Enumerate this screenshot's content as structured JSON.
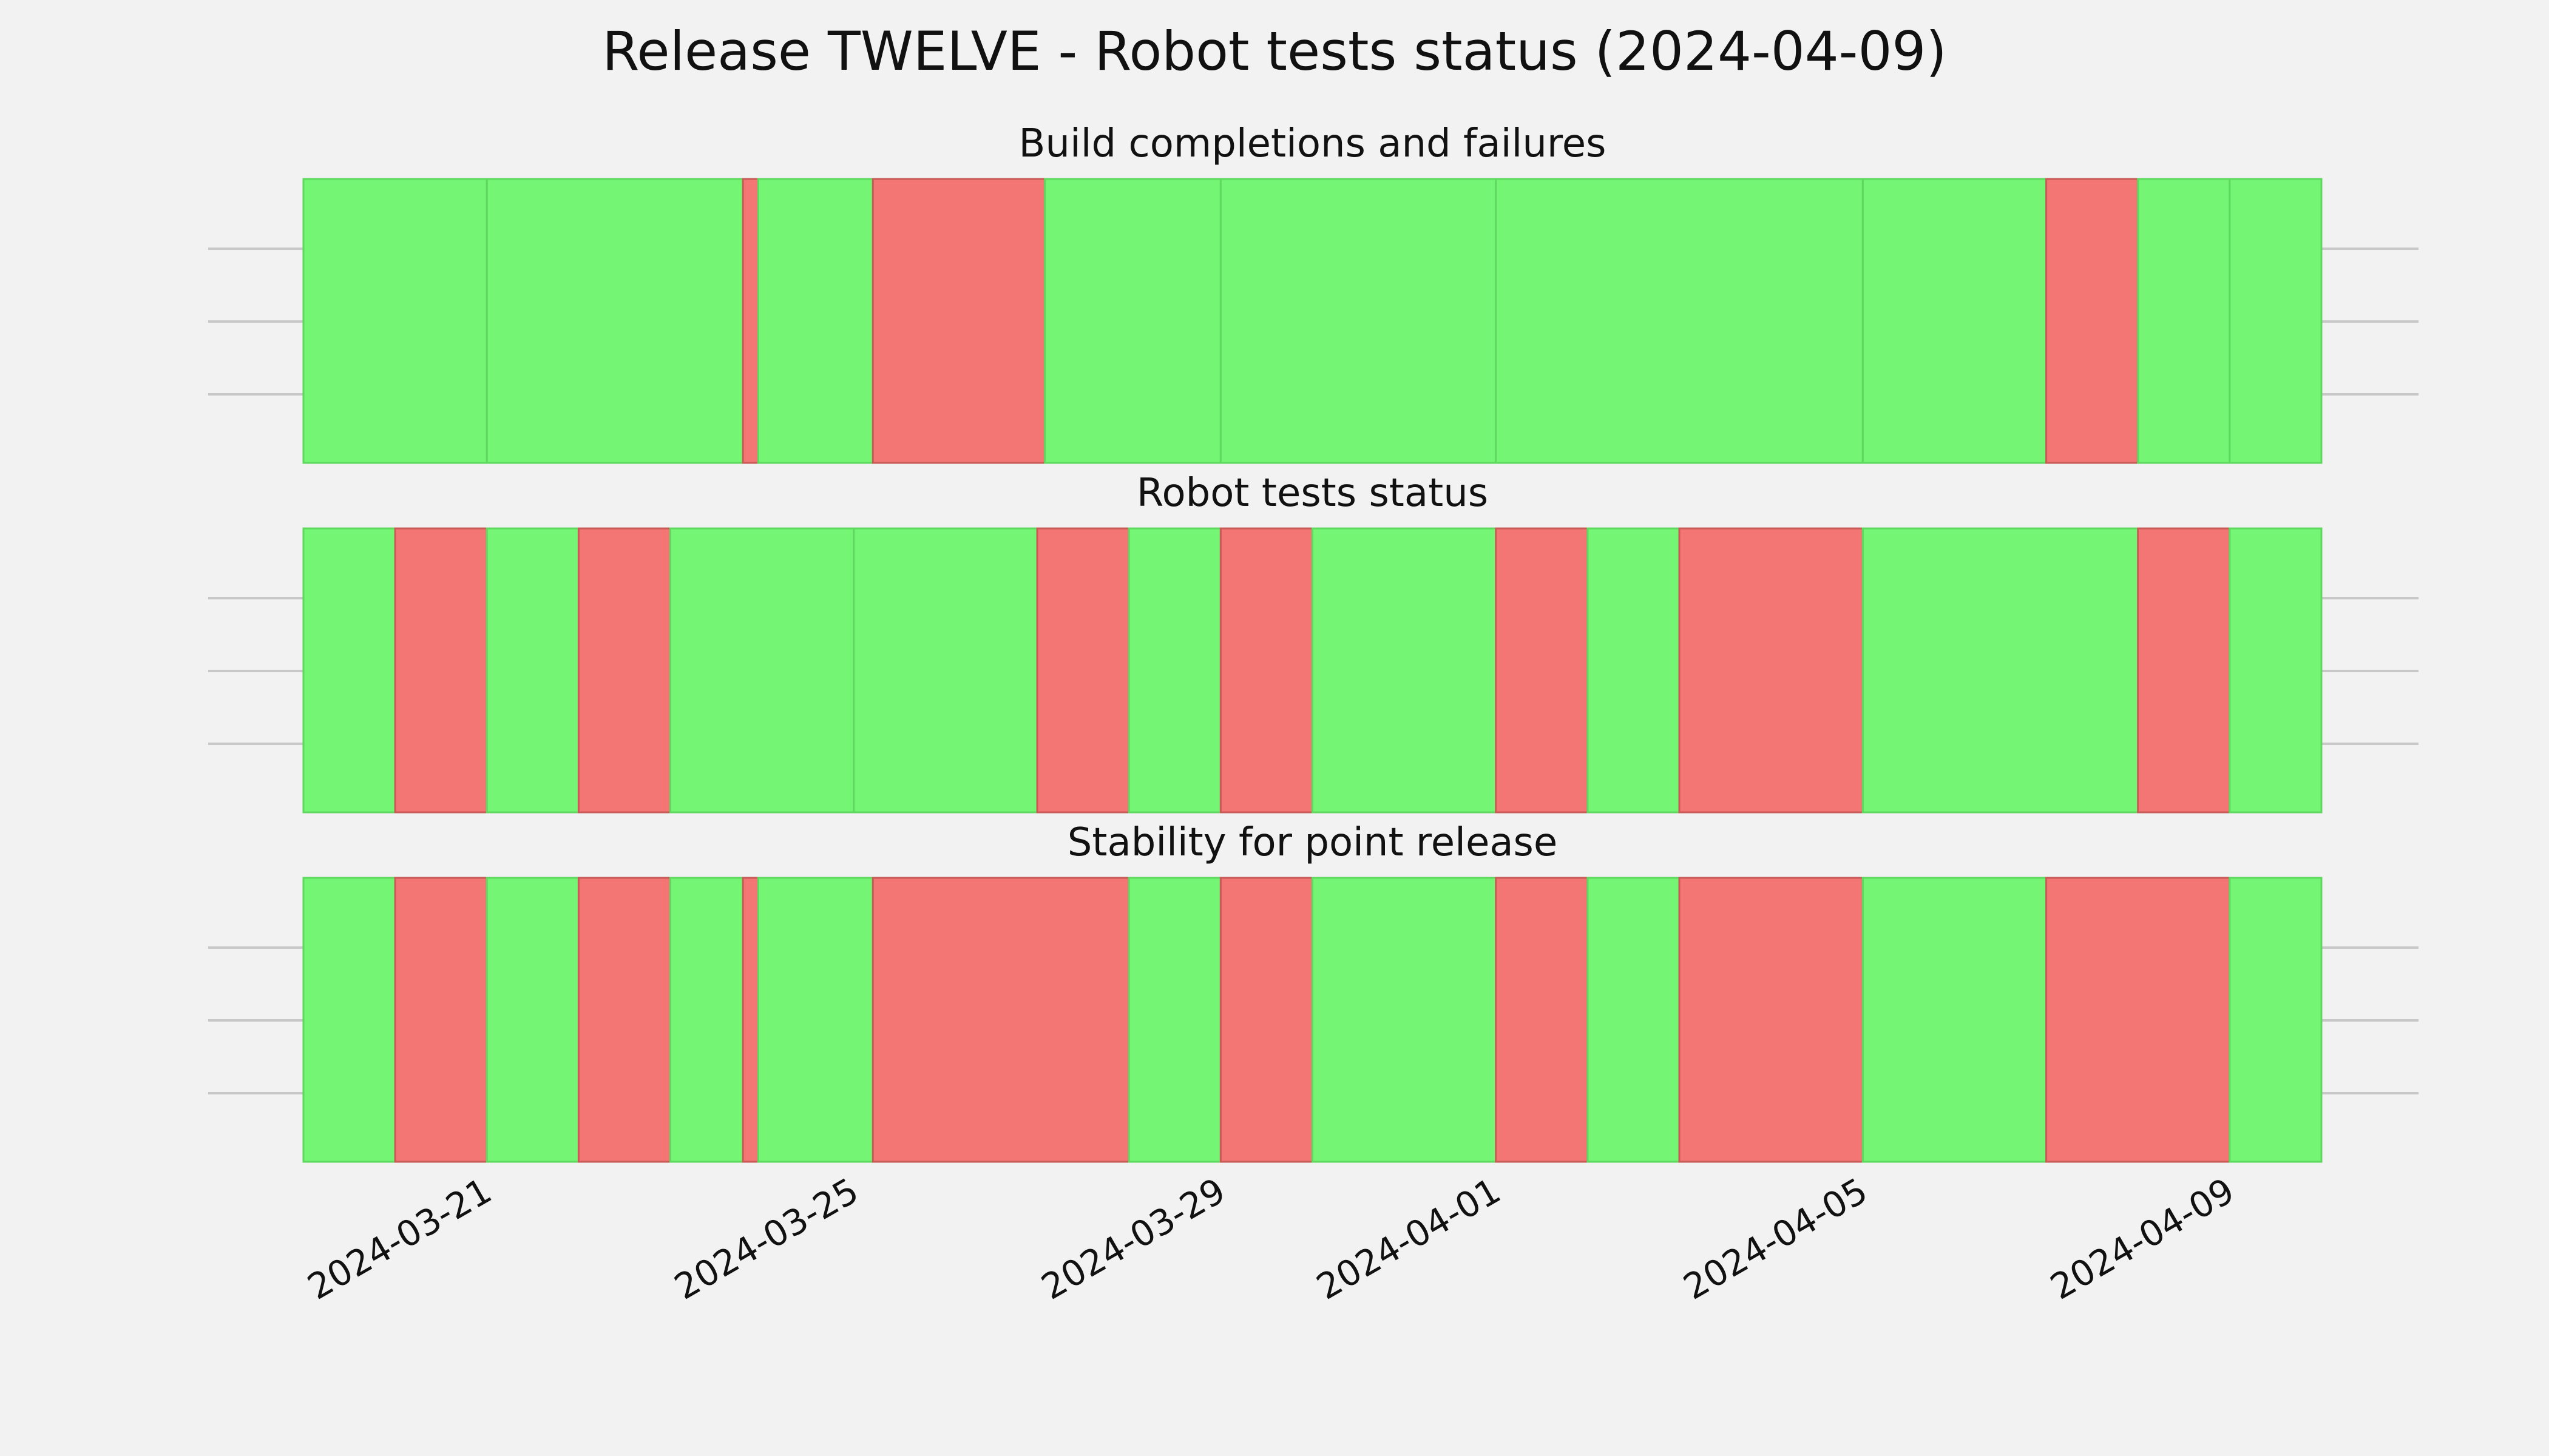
{
  "chart_data": {
    "type": "timeline-status",
    "title": "Release TWELVE - Robot tests status (2024-04-09)",
    "colors": {
      "pass": "#74f574",
      "fail": "#f47674",
      "background": "#f2f2f2",
      "grid": "#c8c8c8"
    },
    "x_range": [
      "2024-03-19T00:00",
      "2024-04-10T00:00"
    ],
    "x_ticks": [
      "2024-03-21",
      "2024-03-25",
      "2024-03-29",
      "2024-04-01",
      "2024-04-05",
      "2024-04-09"
    ],
    "panels": [
      {
        "title": "Build completions and failures",
        "segments": [
          {
            "start": "2024-03-19T00:00",
            "end": "2024-03-21T00:00",
            "status": "pass"
          },
          {
            "start": "2024-03-21T00:00",
            "end": "2024-03-23T19:00",
            "status": "pass"
          },
          {
            "start": "2024-03-23T19:00",
            "end": "2024-03-23T23:00",
            "status": "fail"
          },
          {
            "start": "2024-03-23T23:00",
            "end": "2024-03-25T05:00",
            "status": "pass"
          },
          {
            "start": "2024-03-25T05:00",
            "end": "2024-03-27T02:00",
            "status": "fail"
          },
          {
            "start": "2024-03-27T02:00",
            "end": "2024-03-29T00:00",
            "status": "pass"
          },
          {
            "start": "2024-03-29T00:00",
            "end": "2024-04-01T00:00",
            "status": "pass"
          },
          {
            "start": "2024-04-01T00:00",
            "end": "2024-04-05T00:00",
            "status": "pass"
          },
          {
            "start": "2024-04-05T00:00",
            "end": "2024-04-07T00:00",
            "status": "pass"
          },
          {
            "start": "2024-04-07T00:00",
            "end": "2024-04-08T00:00",
            "status": "fail"
          },
          {
            "start": "2024-04-08T00:00",
            "end": "2024-04-09T00:00",
            "status": "pass"
          },
          {
            "start": "2024-04-09T00:00",
            "end": "2024-04-10T00:00",
            "status": "pass"
          }
        ]
      },
      {
        "title": "Robot tests status",
        "segments": [
          {
            "start": "2024-03-19T00:00",
            "end": "2024-03-20T00:00",
            "status": "pass"
          },
          {
            "start": "2024-03-20T00:00",
            "end": "2024-03-21T00:00",
            "status": "fail"
          },
          {
            "start": "2024-03-21T00:00",
            "end": "2024-03-22T00:00",
            "status": "pass"
          },
          {
            "start": "2024-03-22T00:00",
            "end": "2024-03-23T00:00",
            "status": "fail"
          },
          {
            "start": "2024-03-23T00:00",
            "end": "2024-03-25T00:00",
            "status": "pass"
          },
          {
            "start": "2024-03-25T00:00",
            "end": "2024-03-27T00:00",
            "status": "pass"
          },
          {
            "start": "2024-03-27T00:00",
            "end": "2024-03-28T00:00",
            "status": "fail"
          },
          {
            "start": "2024-03-28T00:00",
            "end": "2024-03-29T00:00",
            "status": "pass"
          },
          {
            "start": "2024-03-29T00:00",
            "end": "2024-03-30T00:00",
            "status": "fail"
          },
          {
            "start": "2024-03-30T00:00",
            "end": "2024-04-01T00:00",
            "status": "pass"
          },
          {
            "start": "2024-04-01T00:00",
            "end": "2024-04-02T00:00",
            "status": "fail"
          },
          {
            "start": "2024-04-02T00:00",
            "end": "2024-04-03T00:00",
            "status": "pass"
          },
          {
            "start": "2024-04-03T00:00",
            "end": "2024-04-05T00:00",
            "status": "fail"
          },
          {
            "start": "2024-04-05T00:00",
            "end": "2024-04-08T00:00",
            "status": "pass"
          },
          {
            "start": "2024-04-08T00:00",
            "end": "2024-04-09T00:00",
            "status": "fail"
          },
          {
            "start": "2024-04-09T00:00",
            "end": "2024-04-10T00:00",
            "status": "pass"
          }
        ]
      },
      {
        "title": "Stability for point release",
        "segments": [
          {
            "start": "2024-03-19T00:00",
            "end": "2024-03-20T00:00",
            "status": "pass"
          },
          {
            "start": "2024-03-20T00:00",
            "end": "2024-03-21T00:00",
            "status": "fail"
          },
          {
            "start": "2024-03-21T00:00",
            "end": "2024-03-22T00:00",
            "status": "pass"
          },
          {
            "start": "2024-03-22T00:00",
            "end": "2024-03-23T00:00",
            "status": "fail"
          },
          {
            "start": "2024-03-23T00:00",
            "end": "2024-03-23T19:00",
            "status": "pass"
          },
          {
            "start": "2024-03-23T19:00",
            "end": "2024-03-23T23:00",
            "status": "fail"
          },
          {
            "start": "2024-03-23T23:00",
            "end": "2024-03-25T05:00",
            "status": "pass"
          },
          {
            "start": "2024-03-25T05:00",
            "end": "2024-03-28T00:00",
            "status": "fail"
          },
          {
            "start": "2024-03-28T00:00",
            "end": "2024-03-29T00:00",
            "status": "pass"
          },
          {
            "start": "2024-03-29T00:00",
            "end": "2024-03-30T00:00",
            "status": "fail"
          },
          {
            "start": "2024-03-30T00:00",
            "end": "2024-04-01T00:00",
            "status": "pass"
          },
          {
            "start": "2024-04-01T00:00",
            "end": "2024-04-02T00:00",
            "status": "fail"
          },
          {
            "start": "2024-04-02T00:00",
            "end": "2024-04-03T00:00",
            "status": "pass"
          },
          {
            "start": "2024-04-03T00:00",
            "end": "2024-04-05T00:00",
            "status": "fail"
          },
          {
            "start": "2024-04-05T00:00",
            "end": "2024-04-07T00:00",
            "status": "pass"
          },
          {
            "start": "2024-04-07T00:00",
            "end": "2024-04-09T00:00",
            "status": "fail"
          },
          {
            "start": "2024-04-09T00:00",
            "end": "2024-04-10T00:00",
            "status": "pass"
          }
        ]
      }
    ]
  }
}
